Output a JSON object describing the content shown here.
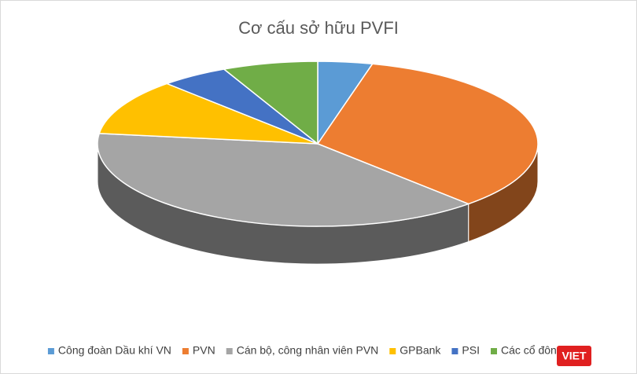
{
  "chart_data": {
    "type": "pie3d",
    "title": "Cơ cấu sở hữu PVFI",
    "categories": [
      "Công đoàn Dầu khí VN",
      "PVN",
      "Cán bộ, công nhân viên PVN",
      "GPBank",
      "PSI",
      "Các cổ đông khác"
    ],
    "values": [
      4,
      34,
      39,
      11,
      5,
      7
    ],
    "colors": [
      "#5b9bd5",
      "#ed7d31",
      "#a5a5a5",
      "#ffc000",
      "#4472c4",
      "#70ad47"
    ],
    "legend": "bottom"
  },
  "watermark": "VIET"
}
